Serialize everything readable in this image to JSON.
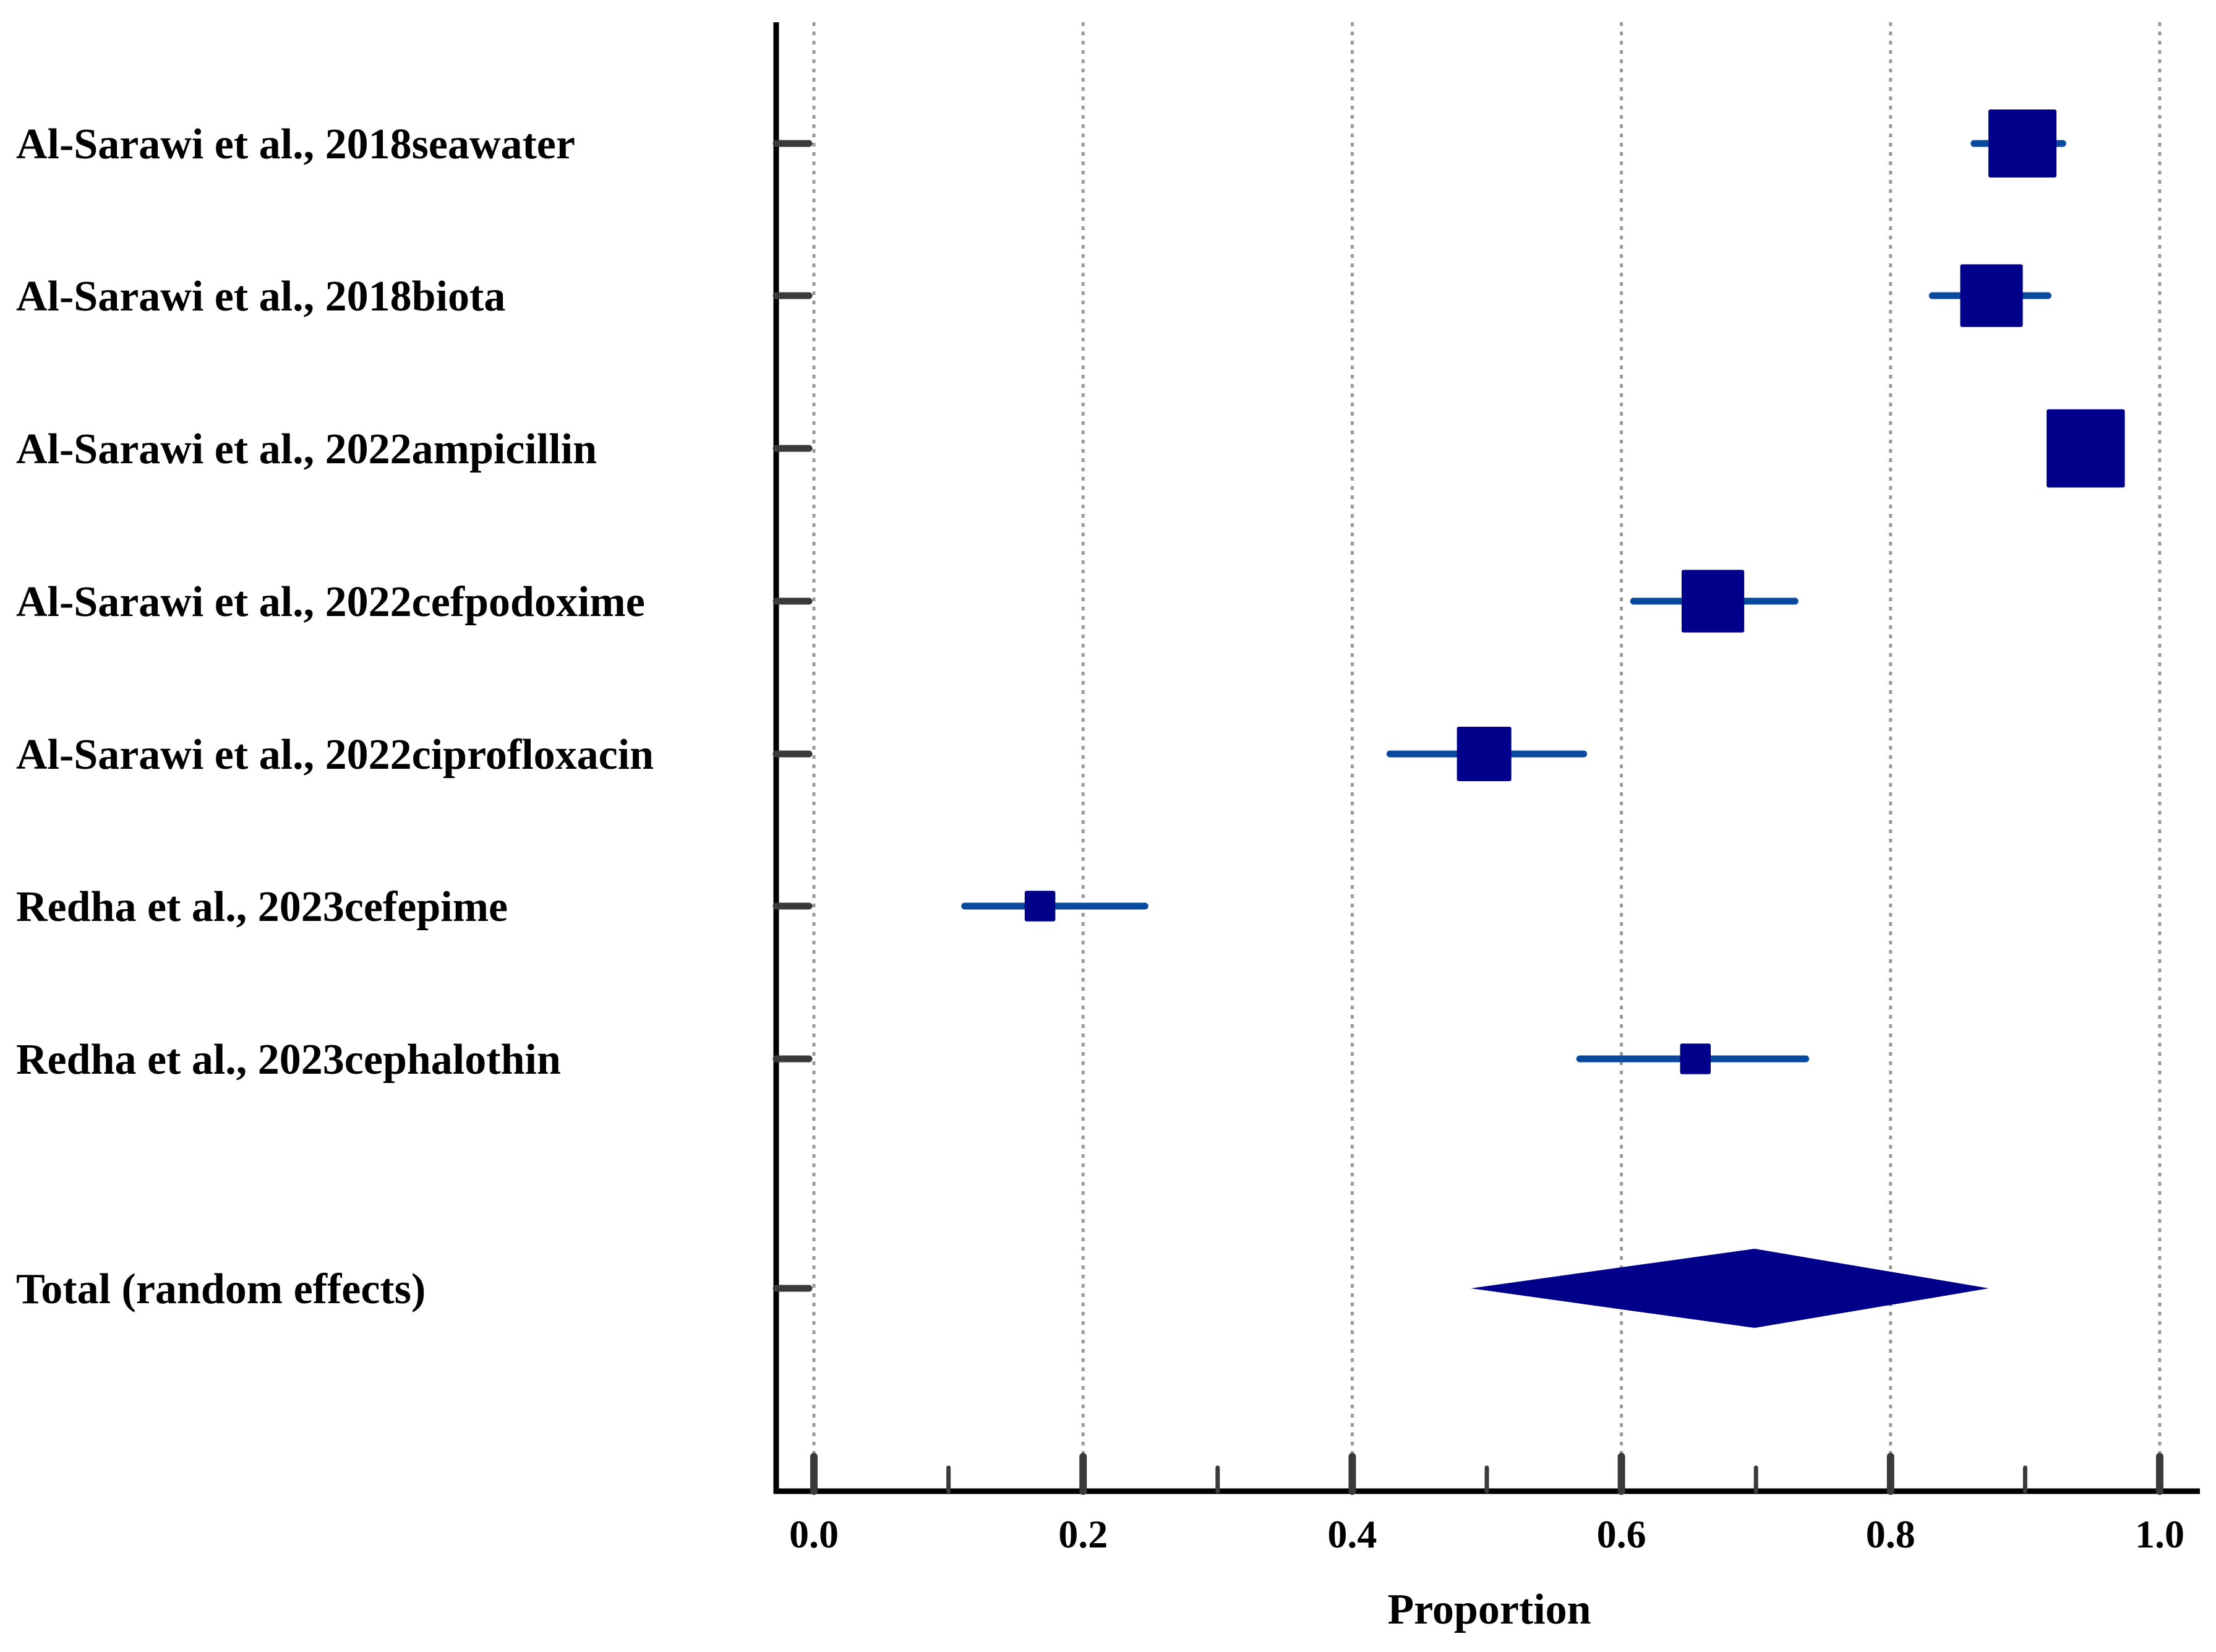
{
  "colors": {
    "square": "#00008b",
    "ci_line": "#0a4a9e",
    "diamond": "#00008b",
    "axis": "#000000",
    "tick": "#3a3a3a",
    "grid": "#999999"
  },
  "chart_data": {
    "type": "forest",
    "title": "",
    "xlabel": "Proportion",
    "ylabel": "",
    "xlim": [
      0.0,
      1.0
    ],
    "x_ticks": [
      0.0,
      0.2,
      0.4,
      0.6,
      0.8,
      1.0
    ],
    "x_tick_labels": [
      "0.0",
      "0.2",
      "0.4",
      "0.6",
      "0.8",
      "1.0"
    ],
    "x_minor_ticks": [
      0.1,
      0.3,
      0.5,
      0.7,
      0.9
    ],
    "grid": "vertical dotted at major ticks",
    "studies": [
      {
        "label": "Al-Sarawi et al., 2018seawater",
        "estimate": 0.898,
        "ci_low": 0.862,
        "ci_high": 0.928,
        "weight": 1.0
      },
      {
        "label": "Al-Sarawi et al., 2018biota",
        "estimate": 0.875,
        "ci_low": 0.831,
        "ci_high": 0.917,
        "weight": 0.92
      },
      {
        "label": "Al-Sarawi et al., 2022ampicillin",
        "estimate": 0.945,
        "ci_low": 0.945,
        "ci_high": 0.945,
        "weight": 1.15
      },
      {
        "label": "Al-Sarawi et al., 2022cefpodoxime",
        "estimate": 0.668,
        "ci_low": 0.609,
        "ci_high": 0.729,
        "weight": 0.92
      },
      {
        "label": "Al-Sarawi et al., 2022ciprofloxacin",
        "estimate": 0.498,
        "ci_low": 0.428,
        "ci_high": 0.572,
        "weight": 0.8
      },
      {
        "label": "Redha et al., 2023cefepime",
        "estimate": 0.168,
        "ci_low": 0.112,
        "ci_high": 0.246,
        "weight": 0.45
      },
      {
        "label": "Redha et al., 2023cephalothin",
        "estimate": 0.655,
        "ci_low": 0.569,
        "ci_high": 0.737,
        "weight": 0.45
      }
    ],
    "pooled": {
      "label": "Total (random effects)",
      "estimate": 0.699,
      "ci_low": 0.488,
      "ci_high": 0.873
    }
  }
}
